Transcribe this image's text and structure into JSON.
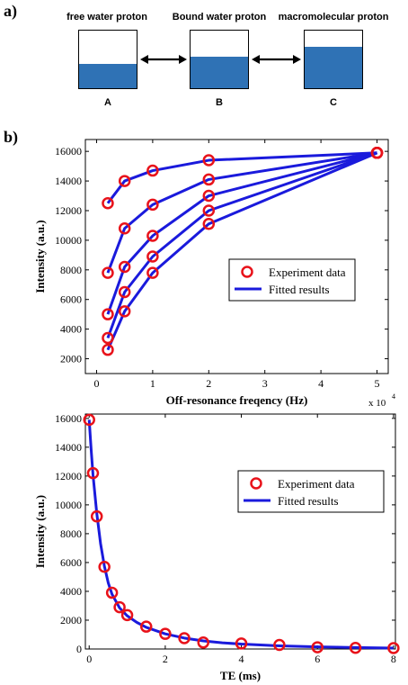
{
  "panel_a": {
    "label": "a)",
    "pools": [
      {
        "name": "free water proton",
        "letter": "A",
        "fill_fraction": 0.42
      },
      {
        "name": "Bound water proton",
        "letter": "B",
        "fill_fraction": 0.55
      },
      {
        "name": "macromolecular proton",
        "letter": "C",
        "fill_fraction": 0.72
      }
    ],
    "fill_color": "#2f72b5"
  },
  "panel_b_label": "b)",
  "chart_data": [
    {
      "type": "line",
      "xlabel": "Off-resonance freqency (Hz)",
      "ylabel": "Intensity (a.u.)",
      "x_multiplier_label": "x 10",
      "x_multiplier_exp": "4",
      "xlim": [
        -0.2,
        5.2
      ],
      "ylim": [
        1000,
        16800
      ],
      "xticks": [
        0,
        1,
        2,
        3,
        4,
        5
      ],
      "yticks": [
        2000,
        4000,
        6000,
        8000,
        10000,
        12000,
        14000,
        16000
      ],
      "grid": false,
      "legend": {
        "position": "right",
        "entries": [
          "Experiment data",
          "Fitted results"
        ]
      },
      "line_color": "#1a1adc",
      "marker_color": "#e8121a",
      "x": [
        0.2,
        0.5,
        1,
        2,
        5
      ],
      "series": [
        {
          "values": [
            12500,
            14000,
            14700,
            15400,
            15900
          ]
        },
        {
          "values": [
            7800,
            10800,
            12400,
            14100,
            15900
          ]
        },
        {
          "values": [
            5000,
            8200,
            10300,
            13000,
            15900
          ]
        },
        {
          "values": [
            3400,
            6500,
            8900,
            12000,
            15900
          ]
        },
        {
          "values": [
            2600,
            5200,
            7800,
            11100,
            15900
          ]
        }
      ]
    },
    {
      "type": "line",
      "xlabel": "TE (ms)",
      "ylabel": "Intensity (a.u.)",
      "xlim": [
        -0.1,
        8.05
      ],
      "ylim": [
        0,
        16300
      ],
      "xticks": [
        0,
        2,
        4,
        6,
        8
      ],
      "yticks": [
        0,
        2000,
        4000,
        6000,
        8000,
        10000,
        12000,
        14000,
        16000
      ],
      "grid": false,
      "legend": {
        "position": "top-right",
        "entries": [
          "Experiment data",
          "Fitted results"
        ]
      },
      "line_color": "#1a1adc",
      "marker_color": "#e8121a",
      "points": {
        "x": [
          0,
          0.1,
          0.2,
          0.4,
          0.6,
          0.8,
          1.0,
          1.5,
          2.0,
          2.5,
          3.0,
          4.0,
          5.0,
          6.0,
          7.0,
          8.0
        ],
        "y": [
          15900,
          12200,
          9200,
          5700,
          3900,
          2900,
          2350,
          1550,
          1050,
          750,
          450,
          380,
          280,
          120,
          80,
          60
        ]
      },
      "fit": {
        "x": [
          0,
          0.05,
          0.1,
          0.2,
          0.3,
          0.4,
          0.5,
          0.6,
          0.8,
          1.0,
          1.25,
          1.5,
          2.0,
          2.5,
          3.0,
          3.5,
          4.0,
          5.0,
          6.0,
          7.0,
          8.0
        ],
        "y": [
          15900,
          13900,
          12100,
          9400,
          7300,
          5750,
          4600,
          3800,
          2850,
          2300,
          1850,
          1500,
          1050,
          760,
          560,
          430,
          340,
          220,
          150,
          100,
          60
        ]
      }
    }
  ]
}
